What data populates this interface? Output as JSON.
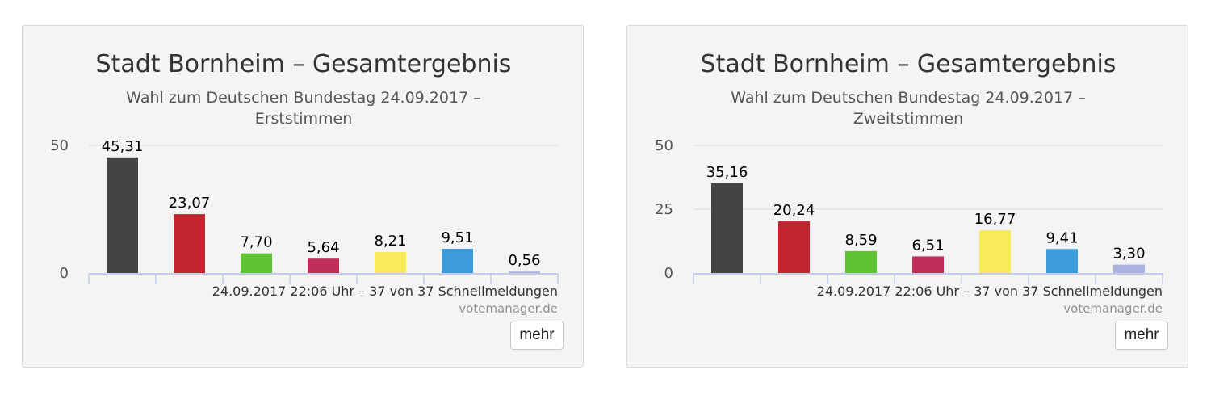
{
  "chart_data": [
    {
      "type": "bar",
      "title": "Stadt Bornheim – Gesamtergebnis",
      "subtitle_lines": [
        "Wahl zum Deutschen Bundestag 24.09.2017 –",
        "Erststimmen"
      ],
      "categories": [
        "",
        "",
        "",
        "",
        "",
        "",
        ""
      ],
      "values": [
        45.31,
        23.07,
        7.7,
        5.64,
        8.21,
        9.51,
        0.56
      ],
      "value_labels": [
        "45,31",
        "23,07",
        "7,70",
        "5,64",
        "8,21",
        "9,51",
        "0,56"
      ],
      "colors": [
        "#444444",
        "#c4262f",
        "#5ec433",
        "#c02e5a",
        "#f7ea5d",
        "#3e9ad9",
        "#aab3e0"
      ],
      "yticks": [
        0,
        50
      ],
      "ylim": [
        0,
        50
      ],
      "grid": true,
      "footer": "24.09.2017 22:06 Uhr – 37 von 37 Schnellmeldungen",
      "credit": "votemanager.de",
      "button_label": "mehr"
    },
    {
      "type": "bar",
      "title": "Stadt Bornheim – Gesamtergebnis",
      "subtitle_lines": [
        "Wahl zum Deutschen Bundestag 24.09.2017 –",
        "Zweitstimmen"
      ],
      "categories": [
        "",
        "",
        "",
        "",
        "",
        "",
        ""
      ],
      "values": [
        35.16,
        20.24,
        8.59,
        6.51,
        16.77,
        9.41,
        3.3
      ],
      "value_labels": [
        "35,16",
        "20,24",
        "8,59",
        "6,51",
        "16,77",
        "9,41",
        "3,30"
      ],
      "colors": [
        "#444444",
        "#c4262f",
        "#5ec433",
        "#c02e5a",
        "#f7ea5d",
        "#3e9ad9",
        "#aab3e0"
      ],
      "yticks": [
        0,
        25,
        50
      ],
      "ylim": [
        0,
        50
      ],
      "grid": true,
      "footer": "24.09.2017 22:06 Uhr – 37 von 37 Schnellmeldungen",
      "credit": "votemanager.de",
      "button_label": "mehr"
    }
  ]
}
